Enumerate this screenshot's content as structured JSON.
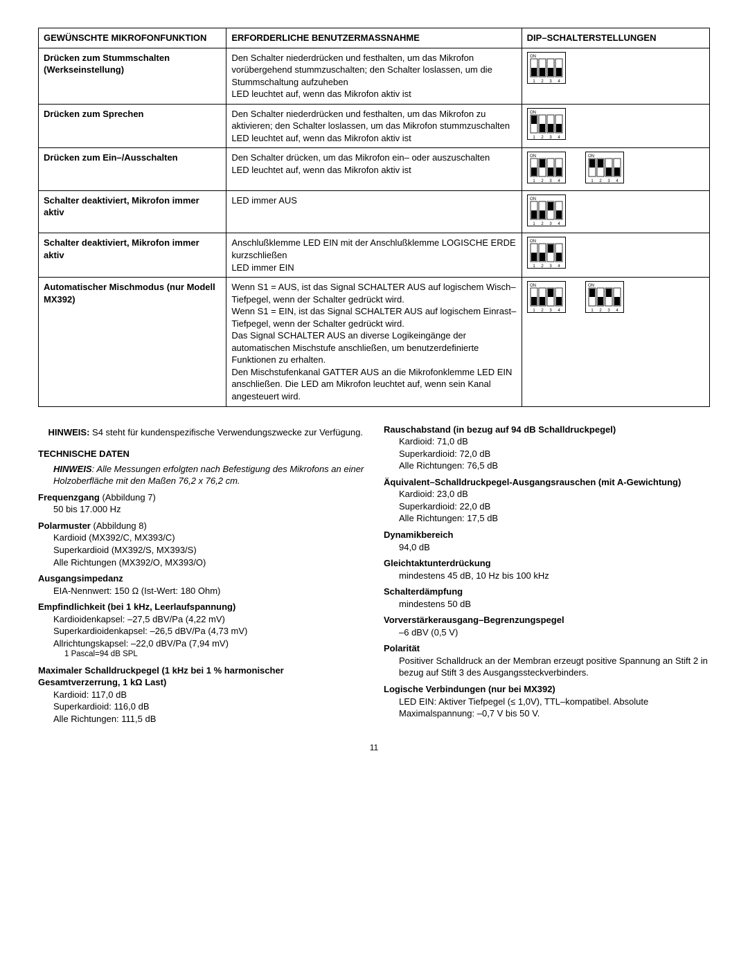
{
  "table": {
    "headers": [
      "GEWÜNSCHTE MIKROFONFUNKTION",
      "ERFORDERLICHE BENUTZERMASSNAHME",
      "DIP–SCHALTERSTELLUNGEN"
    ],
    "rows": [
      {
        "func": "Drücken zum Stummschalten (Werkseinstellung)",
        "action": "Den Schalter niederdrücken und festhalten, um das Mikrofon vorübergehend stummzuschalten; den Schalter loslassen, um die Stummschaltung aufzuheben\nLED leuchtet auf, wenn das Mikrofon aktiv ist",
        "dips": [
          [
            0,
            0,
            0,
            0
          ]
        ]
      },
      {
        "func": "Drücken zum Sprechen",
        "action": "Den Schalter niederdrücken und festhalten, um das Mikrofon zu aktivieren; den Schalter loslassen, um das Mikrofon stummzuschalten\nLED leuchtet auf, wenn das Mikrofon aktiv ist",
        "dips": [
          [
            1,
            0,
            0,
            0
          ]
        ]
      },
      {
        "func": "Drücken zum Ein–/Ausschalten",
        "action": "Den Schalter drücken, um das Mikrofon ein– oder auszuschalten\nLED leuchtet auf, wenn das Mikrofon aktiv ist",
        "dips": [
          [
            0,
            1,
            0,
            0
          ],
          [
            1,
            1,
            0,
            0
          ]
        ]
      },
      {
        "func": "Schalter deaktiviert, Mikrofon immer aktiv",
        "action": "LED immer AUS",
        "dips": [
          [
            0,
            0,
            1,
            0
          ]
        ]
      },
      {
        "func": "Schalter deaktiviert, Mikrofon immer aktiv",
        "action": "Anschlußklemme LED EIN mit der Anschlußklemme LOGISCHE ERDE kurzschließen\nLED immer EIN",
        "dips": [
          [
            0,
            0,
            1,
            0
          ]
        ]
      },
      {
        "func": "Automatischer Mischmodus (nur Modell MX392)",
        "action": "Wenn S1 = AUS, ist das Signal SCHALTER AUS auf logischem Wisch–Tiefpegel, wenn der Schalter gedrückt wird.\nWenn S1 = EIN, ist das Signal SCHALTER AUS auf logischem Einrast–Tiefpegel, wenn der Schalter gedrückt wird.\nDas Signal SCHALTER AUS an diverse Logikeingänge der automatischen Mischstufe anschließen, um benutzerdefinierte Funktionen zu erhalten.\nDen Mischstufenkanal GATTER AUS an die Mikrofonklemme LED EIN anschließen. Die LED am Mikrofon leuchtet auf, wenn sein Kanal angesteuert wird.",
        "dips": [
          [
            0,
            0,
            1,
            0
          ],
          [
            1,
            0,
            1,
            0
          ]
        ]
      }
    ]
  },
  "dip_style": {
    "width": 56,
    "height": 46,
    "stroke": "#000",
    "fill": "#000",
    "bg": "#fff",
    "on_label": "ON"
  },
  "note_top_bold": "HINWEIS:",
  "note_top_text": " S4 steht für kundenspezifische Verwendungszwecke zur Verfügung.",
  "tech_heading": "TECHNISCHE DATEN",
  "tech_note_bold": "HINWEIS",
  "tech_note_text": ": Alle Messungen erfolgten nach Befestigung des Mikrofons an einer Holzoberfläche mit den Maßen 76,2 x 76,2 cm.",
  "left_specs": [
    {
      "label": "Frequenzgang",
      "extra": " (Abbildung 7)",
      "lines": [
        "50 bis 17.000 Hz"
      ]
    },
    {
      "label": "Polarmuster",
      "extra": " (Abbildung 8)",
      "lines": [
        "Kardioid (MX392/C, MX393/C)",
        "Superkardioid (MX392/S, MX393/S)",
        "Alle Richtungen (MX392/O, MX393/O)"
      ]
    },
    {
      "label": "Ausgangsimpedanz",
      "extra": "",
      "lines": [
        "EIA-Nennwert: 150 Ω (Ist-Wert: 180 Ohm)"
      ]
    },
    {
      "label": "Empfindlichkeit (bei 1 kHz, Leerlaufspannung)",
      "extra": "",
      "lines": [
        "Kardioidenkapsel: –27,5 dBV/Pa (4,22 mV)",
        "Superkardioidenkapsel: –26,5 dBV/Pa (4,73 mV)",
        "Allrichtungskapsel: –22,0 dBV/Pa (7,94 mV)"
      ],
      "footnote": "1 Pascal=94 dB SPL"
    },
    {
      "label": "Maximaler Schalldruckpegel (1 kHz bei 1 % harmonischer Gesamtverzerrung, 1 kΩ Last)",
      "extra": "",
      "lines": [
        "Kardioid: 117,0 dB",
        "Superkardioid: 116,0 dB",
        "Alle Richtungen: 111,5 dB"
      ]
    }
  ],
  "right_specs": [
    {
      "label": "Rauschabstand (in bezug auf 94 dB Schalldruckpegel)",
      "extra": "",
      "lines": [
        "Kardioid: 71,0 dB",
        "Superkardioid: 72,0 dB",
        "Alle Richtungen: 76,5 dB"
      ]
    },
    {
      "label": "Äquivalent–Schalldruckpegel-Ausgangsrauschen (mit A-Gewichtung)",
      "extra": "",
      "lines": [
        "Kardioid: 23,0 dB",
        "Superkardioid: 22,0 dB",
        "Alle Richtungen: 17,5 dB"
      ]
    },
    {
      "label": "Dynamikbereich",
      "extra": "",
      "lines": [
        "94,0 dB"
      ]
    },
    {
      "label": "Gleichtaktunterdrückung",
      "extra": "",
      "lines": [
        "mindestens 45 dB, 10 Hz bis 100 kHz"
      ]
    },
    {
      "label": "Schalterdämpfung",
      "extra": "",
      "lines": [
        "mindestens 50 dB"
      ]
    },
    {
      "label": "Vorverstärkerausgang–Begrenzungspegel",
      "extra": "",
      "lines": [
        "–6 dBV (0,5 V)"
      ]
    },
    {
      "label": "Polarität",
      "extra": "",
      "lines": [
        "Positiver Schalldruck an der Membran erzeugt positive Spannung an Stift 2 in bezug auf Stift 3 des Ausgangssteckverbinders."
      ]
    },
    {
      "label": "Logische Verbindungen (nur bei MX392)",
      "extra": "",
      "lines": [
        "LED EIN: Aktiver Tiefpegel (≤ 1,0V), TTL–kompatibel. Absolute Maximalspannung: –0,7 V bis 50 V."
      ]
    }
  ],
  "page_number": "11"
}
